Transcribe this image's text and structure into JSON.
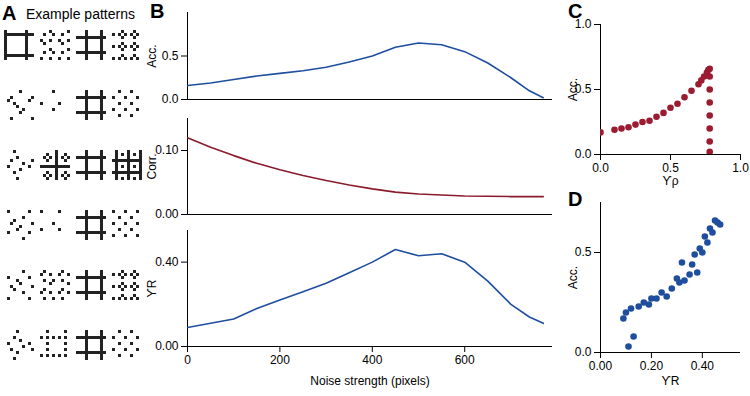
{
  "chart_data": [
    {
      "type": "image",
      "panel": "A",
      "title": "Example patterns"
    },
    {
      "type": "line",
      "panel": "B",
      "ylabel": "Acc.",
      "color": "#1f4e9e",
      "tick_labels": "y",
      "xlim": [
        0,
        790
      ],
      "ylim": [
        0,
        1
      ],
      "yticks": [
        0,
        0.5
      ],
      "x": [
        0,
        50,
        100,
        150,
        200,
        250,
        300,
        350,
        400,
        450,
        500,
        550,
        600,
        650,
        700,
        740,
        770
      ],
      "values": [
        0.16,
        0.19,
        0.23,
        0.27,
        0.3,
        0.33,
        0.37,
        0.43,
        0.5,
        0.6,
        0.65,
        0.63,
        0.55,
        0.42,
        0.25,
        0.1,
        0.02
      ]
    },
    {
      "type": "line",
      "ylabel": "Corr.",
      "color": "#8b1a2b",
      "tick_labels": "y",
      "xlim": [
        0,
        790
      ],
      "ylim": [
        0,
        0.15
      ],
      "yticks": [
        0,
        0.1
      ],
      "x": [
        0,
        50,
        100,
        150,
        200,
        250,
        300,
        350,
        400,
        450,
        500,
        600,
        700,
        770
      ],
      "values": [
        0.12,
        0.105,
        0.092,
        0.08,
        0.07,
        0.061,
        0.053,
        0.046,
        0.04,
        0.035,
        0.032,
        0.029,
        0.028,
        0.028
      ]
    },
    {
      "type": "line",
      "ylabel": "ϒR",
      "xlabel": "Noise strength (pixels)",
      "color": "#1f4e9e",
      "xlim": [
        0,
        790
      ],
      "ylim": [
        0,
        0.55
      ],
      "xticks": [
        0,
        200,
        400,
        600
      ],
      "yticks": [
        0,
        0.4
      ],
      "x": [
        0,
        50,
        100,
        150,
        200,
        250,
        300,
        350,
        400,
        450,
        500,
        550,
        600,
        650,
        700,
        740,
        770
      ],
      "values": [
        0.09,
        0.11,
        0.13,
        0.18,
        0.22,
        0.26,
        0.3,
        0.35,
        0.4,
        0.46,
        0.43,
        0.44,
        0.4,
        0.31,
        0.2,
        0.14,
        0.11
      ]
    },
    {
      "type": "scatter",
      "panel": "C",
      "xlabel": "ϒρ",
      "ylabel": "Acc.",
      "color": "#9b1b30",
      "xlim": [
        0,
        1
      ],
      "ylim": [
        0,
        1
      ],
      "xticks": [
        0,
        0.5,
        1
      ],
      "yticks": [
        0,
        0.5,
        1
      ],
      "x": [
        0,
        0.1,
        0.15,
        0.2,
        0.25,
        0.3,
        0.35,
        0.4,
        0.45,
        0.5,
        0.55,
        0.6,
        0.65,
        0.7,
        0.72,
        0.74,
        0.76,
        0.77,
        0.78,
        0.78,
        0.78,
        0.78,
        0.78,
        0.78,
        0.78,
        0.78
      ],
      "values": [
        0.17,
        0.19,
        0.2,
        0.21,
        0.23,
        0.25,
        0.26,
        0.29,
        0.32,
        0.36,
        0.39,
        0.44,
        0.49,
        0.54,
        0.57,
        0.6,
        0.63,
        0.65,
        0.66,
        0.6,
        0.5,
        0.4,
        0.3,
        0.2,
        0.1,
        0.02
      ]
    },
    {
      "type": "scatter",
      "panel": "D",
      "xlabel": "ϒR",
      "ylabel": "Acc.",
      "color": "#1f4e9e",
      "xlim": [
        0,
        0.55
      ],
      "ylim": [
        0,
        0.75
      ],
      "xticks": [
        0,
        0.2,
        0.4
      ],
      "yticks": [
        0,
        0.5
      ],
      "x": [
        0.09,
        0.1,
        0.11,
        0.12,
        0.13,
        0.15,
        0.17,
        0.19,
        0.2,
        0.22,
        0.24,
        0.26,
        0.28,
        0.3,
        0.31,
        0.32,
        0.33,
        0.35,
        0.36,
        0.37,
        0.38,
        0.39,
        0.4,
        0.41,
        0.42,
        0.43,
        0.44,
        0.45,
        0.46,
        0.47
      ],
      "values": [
        0.17,
        0.2,
        0.03,
        0.22,
        0.08,
        0.23,
        0.25,
        0.24,
        0.27,
        0.27,
        0.3,
        0.28,
        0.32,
        0.37,
        0.35,
        0.45,
        0.36,
        0.39,
        0.44,
        0.49,
        0.4,
        0.52,
        0.5,
        0.58,
        0.55,
        0.62,
        0.6,
        0.66,
        0.65,
        0.64
      ]
    }
  ]
}
